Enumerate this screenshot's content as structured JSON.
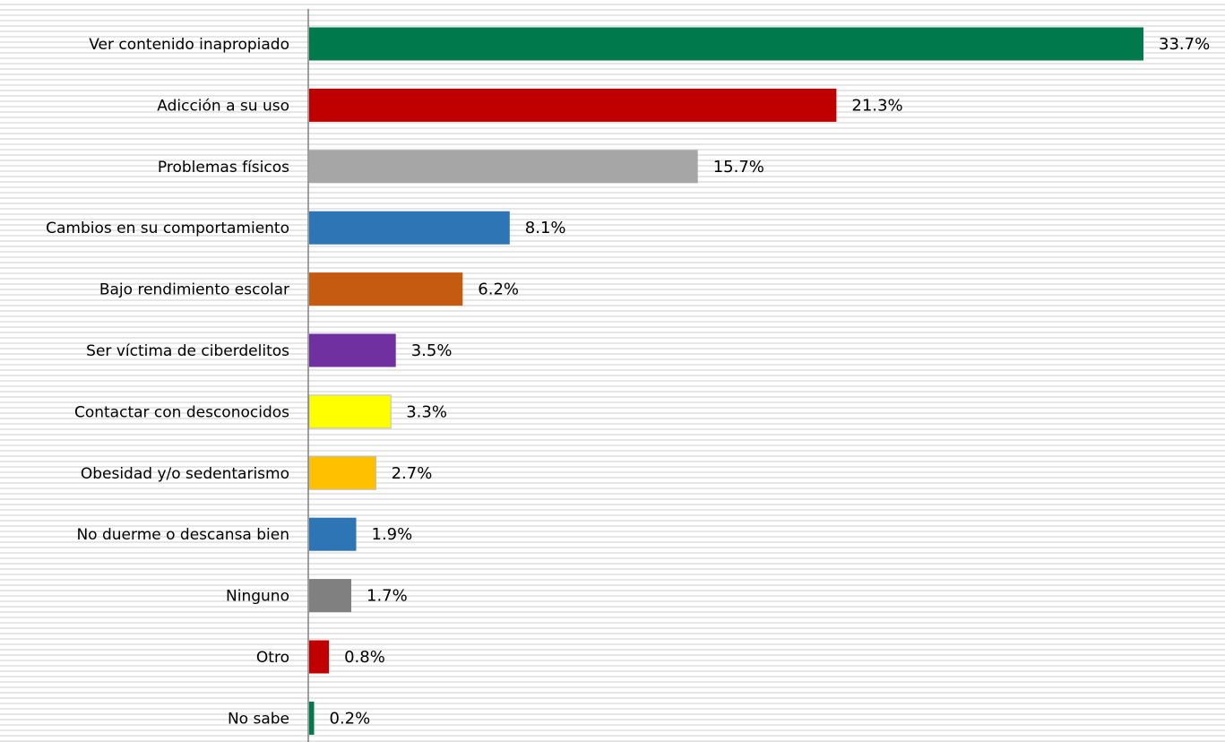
{
  "chart_data": {
    "type": "bar",
    "orientation": "horizontal",
    "title": "",
    "xlabel": "",
    "ylabel": "",
    "xlim": [
      0,
      33.7
    ],
    "grid": false,
    "legend": "none",
    "value_suffix": "%",
    "categories": [
      "Ver contenido inapropiado",
      "Adicción a su uso",
      "Problemas físicos",
      "Cambios en su comportamiento",
      "Bajo rendimiento escolar",
      "Ser víctima de ciberdelitos",
      "Contactar con desconocidos",
      "Obesidad y/o sedentarismo",
      "No duerme o descansa bien",
      "Ninguno",
      "Otro",
      "No sabe"
    ],
    "values": [
      33.7,
      21.3,
      15.7,
      8.1,
      6.2,
      3.5,
      3.3,
      2.7,
      1.9,
      1.7,
      0.8,
      0.2
    ],
    "value_labels": [
      "33.7%",
      "21.3%",
      "15.7%",
      "8.1%",
      "6.2%",
      "3.5%",
      "3.3%",
      "2.7%",
      "1.9%",
      "1.7%",
      "0.8%",
      "0.2%"
    ],
    "colors": [
      "#007a4d",
      "#c00000",
      "#a6a6a6",
      "#2e75b6",
      "#c55a11",
      "#7030a0",
      "#ffff00",
      "#ffc000",
      "#2e75b6",
      "#808080",
      "#c00000",
      "#007a4d"
    ]
  }
}
